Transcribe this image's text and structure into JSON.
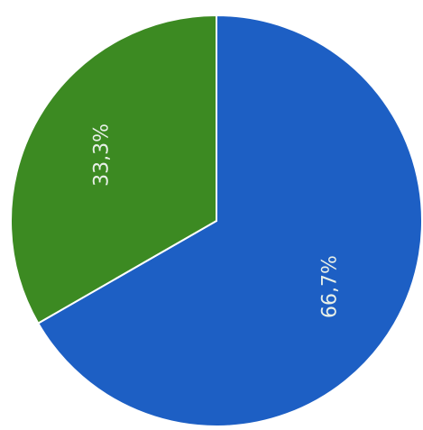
{
  "chart_data": {
    "type": "pie",
    "values": [
      66.7,
      33.3
    ],
    "value_labels": [
      "66,7%",
      "33,3%"
    ],
    "colors": [
      "#1d5fc4",
      "#3c8a22"
    ],
    "start_angle": 0,
    "direction": "clockwise"
  }
}
